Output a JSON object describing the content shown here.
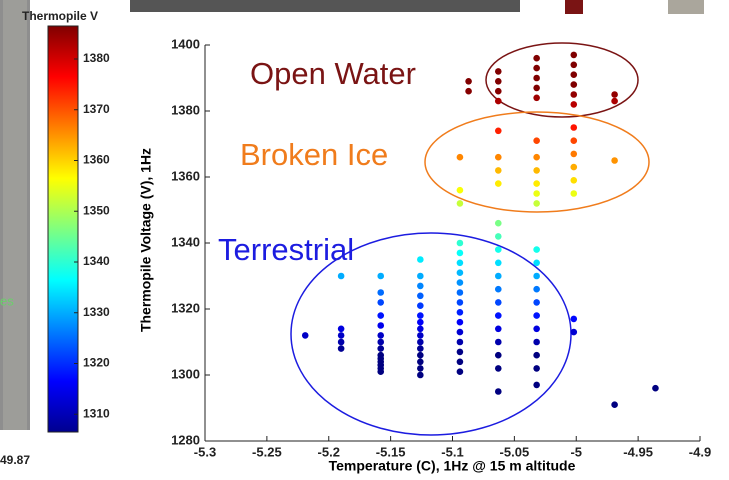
{
  "fragments": {
    "side_label": "es",
    "bottom_label": "49.87"
  },
  "chart_data": {
    "type": "scatter",
    "x_label": "Temperature (C), 1Hz @ 15 m altitude",
    "y_label": "Thermopile Voltage (V), 1Hz",
    "xlim": [
      -5.3,
      -4.9
    ],
    "xticks": [
      -5.3,
      -5.25,
      -5.2,
      -5.15,
      -5.1,
      -5.05,
      -5,
      -4.95,
      -4.9
    ],
    "ylim": [
      1280,
      1400
    ],
    "yticks": [
      1280,
      1300,
      1320,
      1340,
      1360,
      1380,
      1400
    ],
    "colormap": "jet",
    "colorbar": {
      "title": "Thermopile V",
      "clim": [
        1306.5,
        1386.5
      ],
      "ticks": [
        1310,
        1320,
        1330,
        1340,
        1350,
        1360,
        1370,
        1380
      ]
    },
    "x": [
      -5.219,
      -5.19,
      -5.19,
      -5.19,
      -5.19,
      -5.19,
      -5.158,
      -5.158,
      -5.158,
      -5.158,
      -5.158,
      -5.158,
      -5.158,
      -5.158,
      -5.158,
      -5.158,
      -5.158,
      -5.158,
      -5.158,
      -5.158,
      -5.126,
      -5.126,
      -5.126,
      -5.126,
      -5.126,
      -5.126,
      -5.126,
      -5.126,
      -5.126,
      -5.126,
      -5.126,
      -5.126,
      -5.126,
      -5.126,
      -5.126,
      -5.094,
      -5.094,
      -5.094,
      -5.094,
      -5.094,
      -5.094,
      -5.094,
      -5.094,
      -5.094,
      -5.094,
      -5.094,
      -5.094,
      -5.094,
      -5.094,
      -5.094,
      -5.094,
      -5.094,
      -5.087,
      -5.087,
      -5.063,
      -5.063,
      -5.063,
      -5.063,
      -5.063,
      -5.063,
      -5.063,
      -5.063,
      -5.063,
      -5.063,
      -5.063,
      -5.063,
      -5.063,
      -5.063,
      -5.063,
      -5.063,
      -5.063,
      -5.063,
      -5.063,
      -5.063,
      -5.063,
      -5.032,
      -5.032,
      -5.032,
      -5.032,
      -5.032,
      -5.032,
      -5.032,
      -5.032,
      -5.032,
      -5.032,
      -5.032,
      -5.032,
      -5.032,
      -5.032,
      -5.032,
      -5.032,
      -5.032,
      -5.032,
      -5.032,
      -5.032,
      -5.032,
      -5.032,
      -5.002,
      -5.002,
      -5.002,
      -5.002,
      -5.002,
      -5.002,
      -5.002,
      -5.002,
      -5.002,
      -5.002,
      -5.002,
      -5.002,
      -5.002,
      -5.002,
      -4.969,
      -4.969,
      -4.969,
      -4.969,
      -4.936
    ],
    "y": [
      1312,
      1330,
      1314,
      1312,
      1310,
      1308,
      1330,
      1325,
      1322,
      1318,
      1315,
      1312,
      1310,
      1308,
      1306,
      1305,
      1304,
      1303,
      1302,
      1301,
      1335,
      1330,
      1327,
      1324,
      1321,
      1318,
      1316,
      1314,
      1312,
      1310,
      1308,
      1306,
      1304,
      1302,
      1300,
      1366,
      1356,
      1352,
      1340,
      1337,
      1334,
      1331,
      1328,
      1325,
      1322,
      1319,
      1316,
      1313,
      1310,
      1307,
      1304,
      1301,
      1389,
      1386,
      1392,
      1389,
      1386,
      1383,
      1374,
      1366,
      1362,
      1358,
      1346,
      1342,
      1338,
      1334,
      1330,
      1326,
      1322,
      1318,
      1314,
      1310,
      1306,
      1302,
      1295,
      1396,
      1393,
      1390,
      1387,
      1384,
      1371,
      1366,
      1362,
      1358,
      1355,
      1352,
      1338,
      1334,
      1330,
      1326,
      1322,
      1318,
      1314,
      1310,
      1306,
      1302,
      1297,
      1397,
      1394,
      1391,
      1388,
      1385,
      1382,
      1375,
      1371,
      1367,
      1363,
      1359,
      1355,
      1317,
      1313,
      1385,
      1383,
      1365,
      1291,
      1296
    ],
    "annotations": [
      {
        "text": "Open Water",
        "color": "#7a1414"
      },
      {
        "text": "Broken Ice",
        "color": "#f07c1c"
      },
      {
        "text": "Terrestrial",
        "color": "#1c1ce0"
      }
    ]
  }
}
